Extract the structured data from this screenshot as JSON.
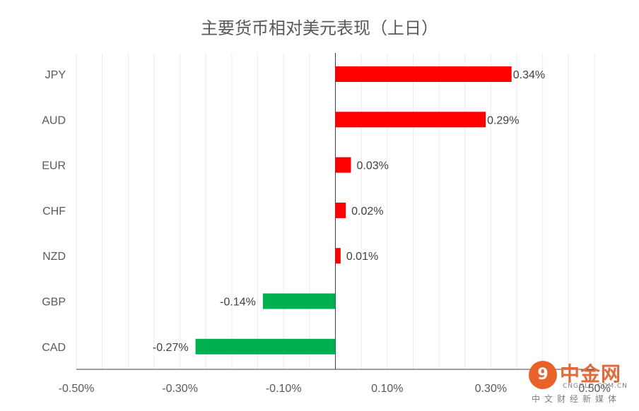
{
  "chart_data": {
    "type": "bar",
    "orientation": "horizontal",
    "title": "主要货币相对美元表现（上日）",
    "categories": [
      "JPY",
      "AUD",
      "EUR",
      "CHF",
      "NZD",
      "GBP",
      "CAD"
    ],
    "values": [
      0.34,
      0.29,
      0.03,
      0.02,
      0.01,
      -0.14,
      -0.27
    ],
    "value_labels": [
      "0.34%",
      "0.29%",
      "0.03%",
      "0.02%",
      "0.01%",
      "-0.14%",
      "-0.27%"
    ],
    "xlim": [
      -0.5,
      0.5
    ],
    "xticks": [
      -0.5,
      -0.3,
      -0.1,
      0.1,
      0.3,
      0.5
    ],
    "xtick_labels": [
      "-0.50%",
      "-0.30%",
      "-0.10%",
      "0.10%",
      "0.30%",
      "0.50%"
    ],
    "colors": {
      "positive": "#ff0000",
      "negative": "#00b050",
      "grid": "#ececec",
      "axis": "#404040"
    },
    "grid": true
  },
  "watermark": {
    "brand": "中金网",
    "url": "CNGOLD.COM.CN",
    "tagline": "中文财经新媒体"
  },
  "icons": {
    "watermark_logo": "cngold-logo-icon"
  }
}
